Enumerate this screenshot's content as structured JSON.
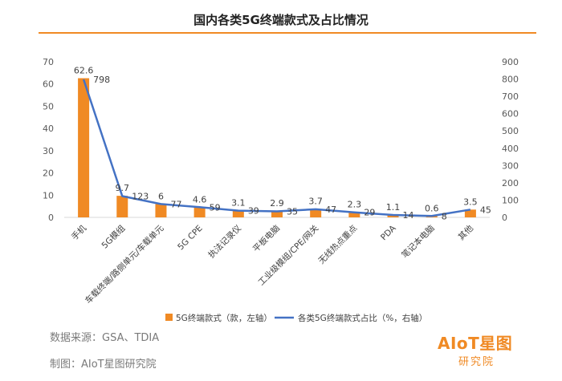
{
  "header": {
    "title": "国内各类5G终端款式及占比情况"
  },
  "footer": {
    "source": "数据来源：GSA、TDIA",
    "credit": "制图：AIoT星图研究院"
  },
  "logo": {
    "brand": "AIoT星图",
    "sub": "研究院"
  },
  "colors": {
    "bar": "#f08a24",
    "line": "#4472c4",
    "accent": "#f08a24"
  },
  "chart_data": {
    "type": "bar",
    "categories": [
      "手机",
      "5G模组",
      "车载终端/路侧单元/车载单元",
      "5G CPE",
      "执法记录仪",
      "平板电脑",
      "工业级模组/CPE/网关",
      "无线热点重点",
      "PDA",
      "笔记本电脑",
      "其他"
    ],
    "series": [
      {
        "name": "5G终端款式（款，左轴）",
        "type": "bar",
        "axis": "left",
        "values": [
          62.6,
          9.7,
          6,
          4.6,
          3.1,
          2.9,
          3.7,
          2.3,
          1.1,
          0.6,
          3.5
        ]
      },
      {
        "name": "各类5G终端款式占比（%，右轴）",
        "type": "line",
        "axis": "right",
        "values": [
          798,
          123,
          77,
          59,
          39,
          35,
          47,
          29,
          14,
          8,
          45
        ]
      }
    ],
    "y_left": {
      "min": 0,
      "max": 70,
      "ticks": [
        0,
        10,
        20,
        30,
        40,
        50,
        60,
        70
      ]
    },
    "y_right": {
      "min": 0,
      "max": 900,
      "ticks": [
        0,
        100,
        200,
        300,
        400,
        500,
        600,
        700,
        800,
        900
      ]
    },
    "legend_position": "bottom",
    "grid": false
  }
}
